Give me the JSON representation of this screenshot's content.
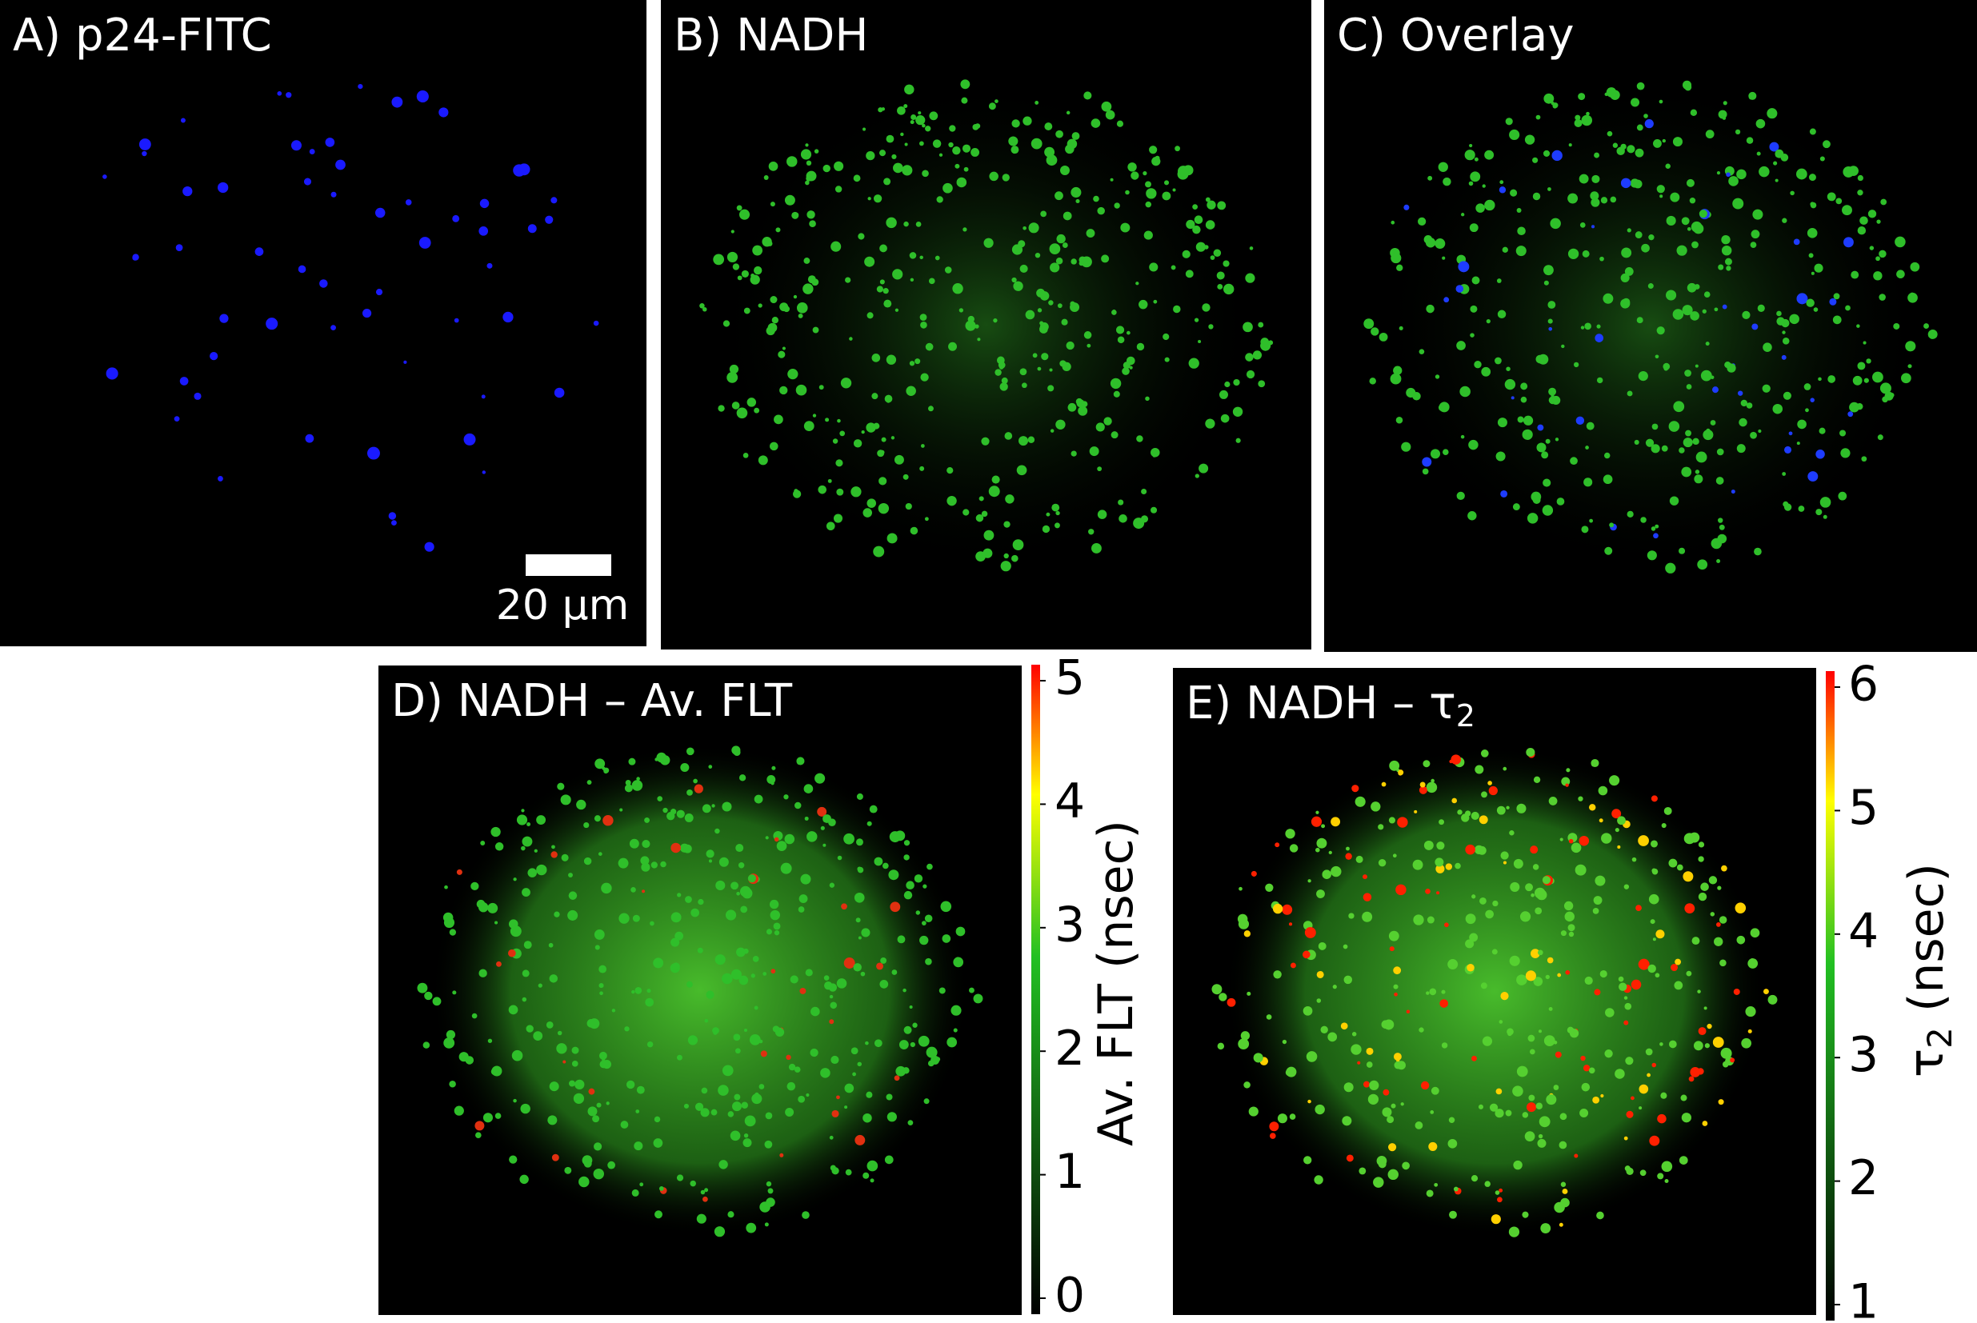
{
  "panels": [
    {
      "label": "A) p24-FITC"
    },
    {
      "label": "B) NADH"
    },
    {
      "label": "C) Overlay"
    },
    {
      "label": "D) NADH – Av. FLT"
    },
    {
      "label": "E) NADH – τ",
      "label_subscript": "2"
    }
  ],
  "scale_bar": {
    "label": "20 µm"
  },
  "colorbars": [
    {
      "label": "Av. FLT (nsec)",
      "lim": [
        0,
        5
      ],
      "ticks": [
        0,
        1,
        2,
        3,
        4,
        5
      ]
    },
    {
      "label": "τ",
      "label_subscript": "2",
      "label_suffix": " (nsec)",
      "lim": [
        1,
        6
      ],
      "ticks": [
        1,
        2,
        3,
        4,
        5,
        6
      ]
    }
  ]
}
